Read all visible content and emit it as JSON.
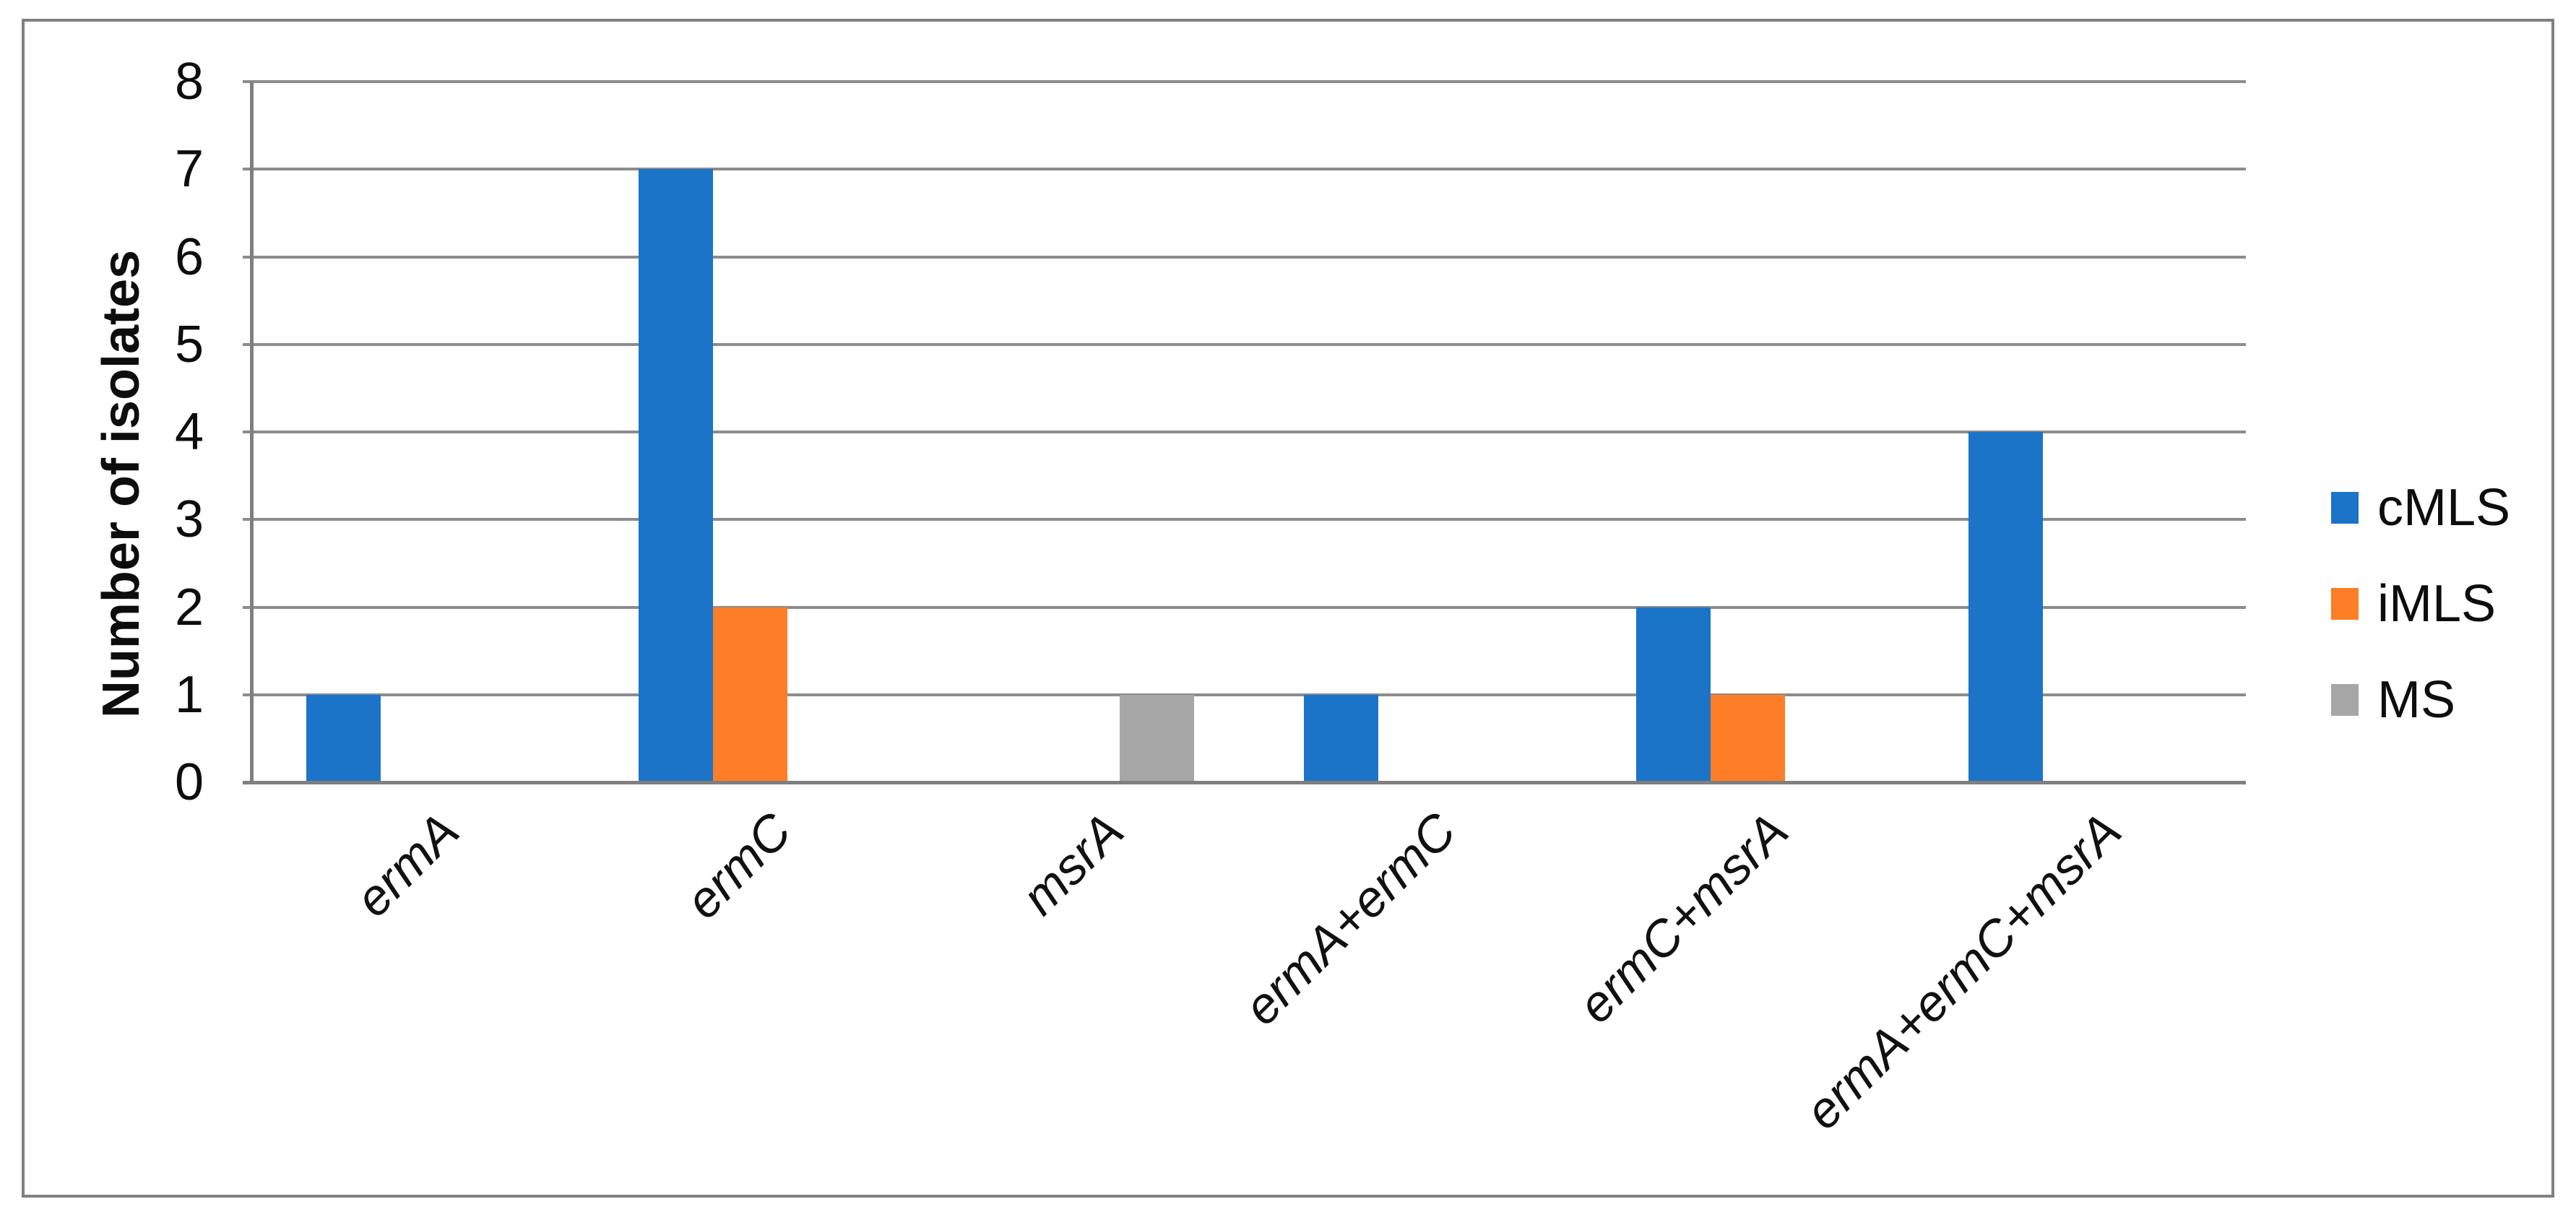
{
  "figure": {
    "background_color": "#FFFFFF",
    "border_color": "#808080"
  },
  "chart_data": {
    "type": "bar",
    "title": "",
    "categories": [
      "ermA",
      "ermC",
      "msrA",
      "ermA+ermC",
      "ermC+msrA",
      "ermA+ermC+msrA"
    ],
    "series": [
      {
        "name": "cMLS",
        "color": "#1B74C8",
        "values": [
          1,
          7,
          0,
          1,
          2,
          4
        ]
      },
      {
        "name": "iMLS",
        "color": "#FD7E26",
        "values": [
          0,
          2,
          0,
          0,
          1,
          0
        ]
      },
      {
        "name": "MS",
        "color": "#A6A6A6",
        "values": [
          0,
          0,
          1,
          0,
          0,
          0
        ]
      }
    ],
    "xlabel": "",
    "ylabel": "Number of isolates",
    "ylim": [
      0,
      8
    ],
    "yticks": [
      0,
      1,
      2,
      3,
      4,
      5,
      6,
      7,
      8
    ],
    "grid": true,
    "gridline_color": "#8C8C8C",
    "axis_color": "#7F7F7F",
    "tick_label_color": "#0D0D0D",
    "legend_position": "right",
    "x_tick_style": "italic-rotated-45",
    "bar_gap_within_group": 0
  }
}
